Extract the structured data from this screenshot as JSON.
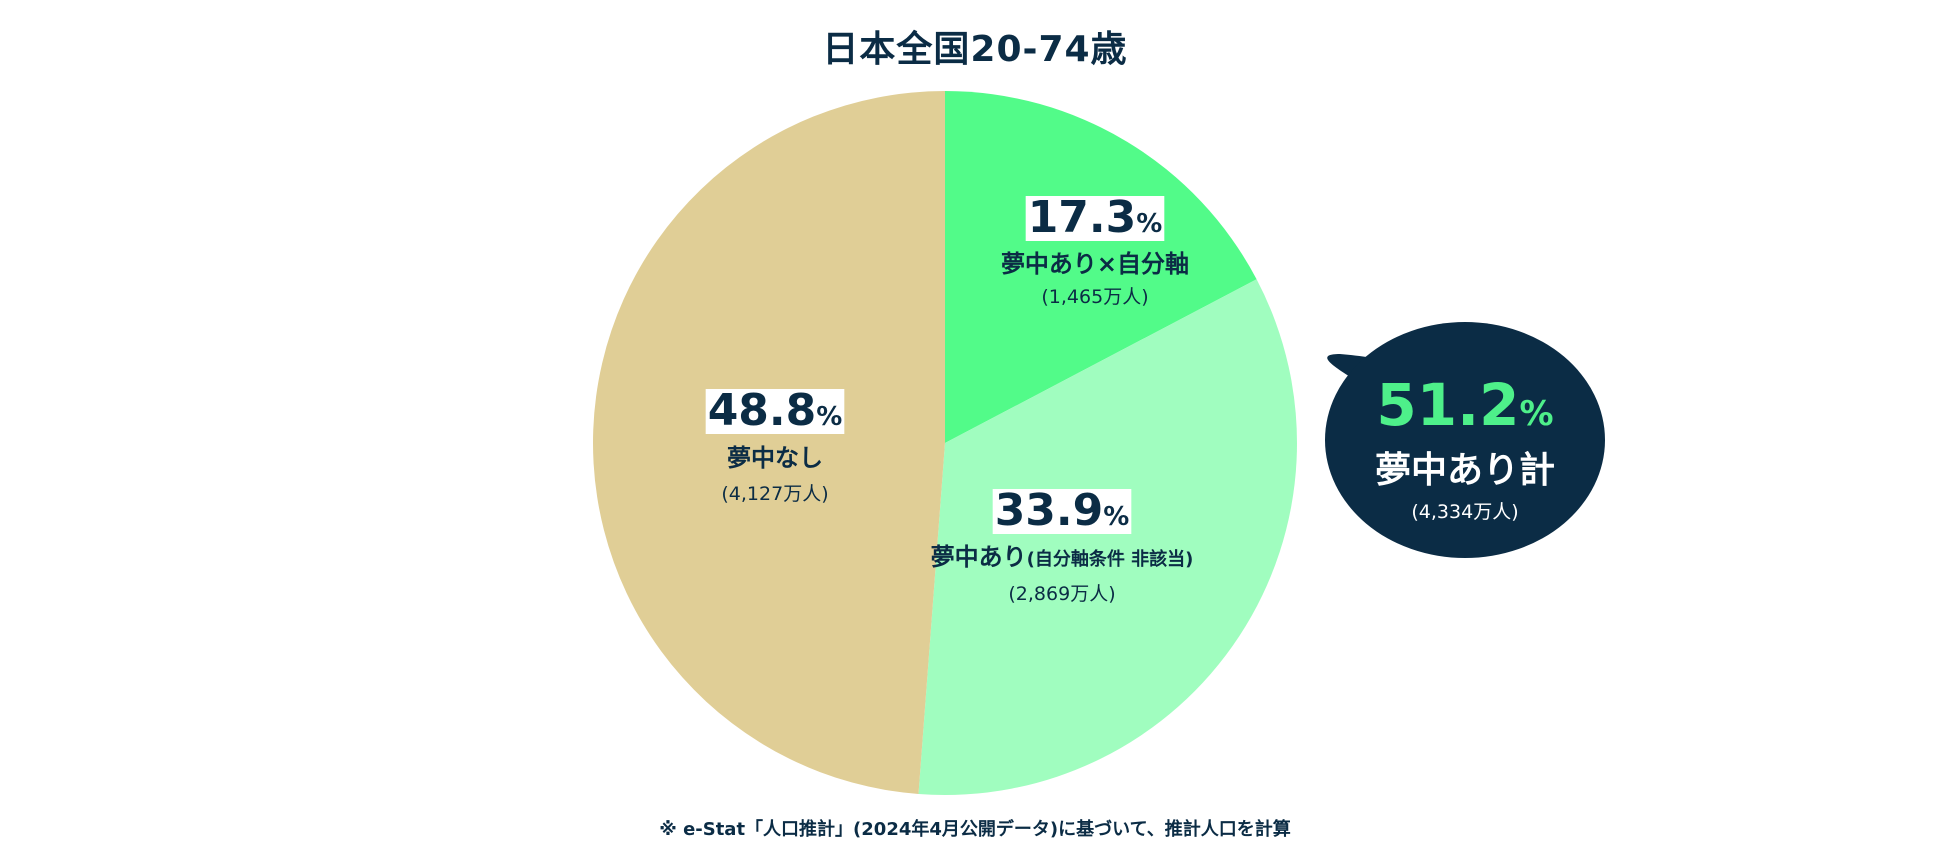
{
  "title": "日本全国20-74歳",
  "footnote": "※ e-Stat「人口推計」(2024年4月公開データ)に基づいて、推計人口を計算",
  "colors": {
    "text": "#0b2c45",
    "bubble": "#0b2c45",
    "bubble_pct": "#4ef08a",
    "label_bg": "#ffffff"
  },
  "chart_data": {
    "type": "pie",
    "start": "12 o'clock",
    "direction": "clockwise",
    "slices": [
      {
        "key": "jiku",
        "value": 17.3,
        "pct_label": "17.3",
        "unit": "%",
        "name": "夢中あり×自分軸",
        "name_suffix": "",
        "count": "(1,465万人)",
        "color": "#52fb89"
      },
      {
        "key": "ari",
        "value": 33.9,
        "pct_label": "33.9",
        "unit": "%",
        "name": "夢中あり",
        "name_suffix": "(自分軸条件 非該当)",
        "count": "(2,869万人)",
        "color": "#a0fdbf"
      },
      {
        "key": "nashi",
        "value": 48.8,
        "pct_label": "48.8",
        "unit": "%",
        "name": "夢中なし",
        "name_suffix": "",
        "count": "(4,127万人)",
        "color": "#e0ce96"
      }
    ],
    "callout": {
      "value": 51.2,
      "pct_label": "51.2",
      "unit": "%",
      "name": "夢中あり計",
      "count": "(4,334万人)"
    }
  }
}
